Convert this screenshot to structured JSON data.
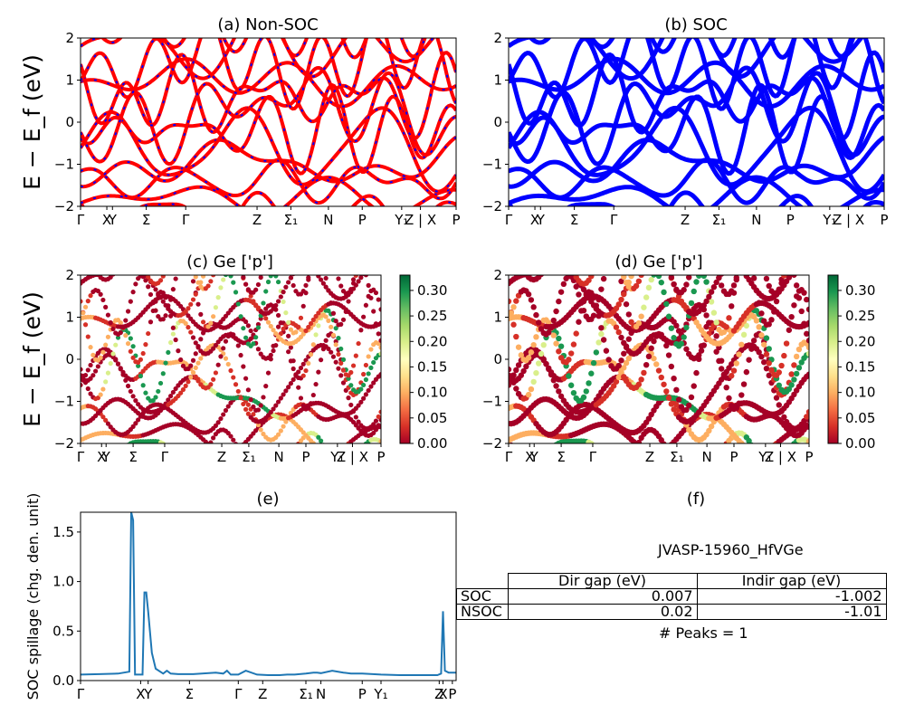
{
  "ylabel_band": "E − E_f (eV)",
  "colors": {
    "nonsoc_main": "#ff0000",
    "nonsoc_dash": "#0000ff",
    "soc": "#0000ff",
    "spillage": "#1f77b4"
  },
  "band_ticks": [
    "Γ",
    "X",
    "Y",
    "Σ",
    "Γ",
    "Z",
    "Σ₁",
    "N",
    "P",
    "Y₁",
    "Z | X",
    "P"
  ],
  "band_yticks": [
    "2",
    "1",
    "0",
    "−1",
    "−2"
  ],
  "colorbar_ticks": [
    "0.00",
    "0.05",
    "0.10",
    "0.15",
    "0.20",
    "0.25",
    "0.30"
  ],
  "panels": {
    "a": {
      "title": "(a) Non-SOC"
    },
    "b": {
      "title": "(b) SOC"
    },
    "c": {
      "title": "(c)  Ge ['p']"
    },
    "d": {
      "title": "(d) Ge ['p']"
    },
    "e": {
      "title": "(e)",
      "ylabel": "SOC spillage (chg. den. unit)"
    },
    "f": {
      "title": "(f)",
      "material": "JVASP-15960_HfVGe",
      "peaks": "# Peaks = 1"
    }
  },
  "gap_table": {
    "headers": [
      "Dir gap (eV)",
      "Indir gap (eV)"
    ],
    "rows": [
      {
        "label": "SOC",
        "dir": "0.007",
        "indir": "-1.002"
      },
      {
        "label": "NSOC",
        "dir": "0.02",
        "indir": "-1.01"
      }
    ]
  },
  "chart_data": [
    {
      "type": "line",
      "panel": "(a) Non-SOC",
      "ylabel": "E − E_f (eV)",
      "ylim": [
        -2,
        2
      ],
      "xticks": [
        "Γ",
        "X",
        "Y",
        "Σ",
        "Γ",
        "Z",
        "Σ₁",
        "N",
        "P",
        "Y₁",
        "Z | X",
        "P"
      ]
    },
    {
      "type": "line",
      "panel": "(b) SOC",
      "ylim": [
        -2,
        2
      ],
      "xticks": [
        "Γ",
        "X",
        "Y",
        "Σ",
        "Γ",
        "Z",
        "Σ₁",
        "N",
        "P",
        "Y₁",
        "Z | X",
        "P"
      ]
    },
    {
      "type": "scatter",
      "panel": "(c)  Ge ['p']",
      "ylabel": "E − E_f (eV)",
      "ylim": [
        -2,
        2
      ],
      "colorbar": [
        0.0,
        0.33
      ]
    },
    {
      "type": "scatter",
      "panel": "(d) Ge ['p']",
      "ylim": [
        -2,
        2
      ],
      "colorbar": [
        0.0,
        0.33
      ]
    },
    {
      "type": "line",
      "panel": "(e)",
      "ylabel": "SOC spillage (chg. den. unit)",
      "ylim": [
        0,
        1.7
      ],
      "yticks": [
        "0.0",
        "0.5",
        "1.0",
        "1.5"
      ],
      "xticks": [
        "Γ",
        "X",
        "Y",
        "Σ",
        "Γ",
        "Z",
        "Σ₁",
        "N",
        "P",
        "Y₁",
        "Z",
        "X",
        "P"
      ],
      "x": [
        0,
        0.05,
        0.1,
        0.13,
        0.135,
        0.14,
        0.145,
        0.15,
        0.165,
        0.17,
        0.175,
        0.18,
        0.19,
        0.2,
        0.22,
        0.23,
        0.24,
        0.26,
        0.3,
        0.36,
        0.38,
        0.39,
        0.4,
        0.42,
        0.44,
        0.47,
        0.5,
        0.53,
        0.55,
        0.57,
        0.6,
        0.62,
        0.63,
        0.64,
        0.67,
        0.7,
        0.72,
        0.75,
        0.8,
        0.85,
        0.9,
        0.93,
        0.95,
        0.96,
        0.965,
        0.97,
        0.98,
        1.0
      ],
      "values": [
        0.06,
        0.065,
        0.07,
        0.09,
        1.7,
        1.62,
        0.06,
        0.06,
        0.06,
        0.89,
        0.89,
        0.7,
        0.28,
        0.12,
        0.07,
        0.1,
        0.07,
        0.065,
        0.065,
        0.08,
        0.07,
        0.1,
        0.06,
        0.06,
        0.1,
        0.06,
        0.055,
        0.055,
        0.06,
        0.06,
        0.07,
        0.08,
        0.08,
        0.075,
        0.1,
        0.08,
        0.07,
        0.07,
        0.06,
        0.055,
        0.055,
        0.055,
        0.055,
        0.07,
        0.7,
        0.1,
        0.08,
        0.08
      ]
    }
  ]
}
